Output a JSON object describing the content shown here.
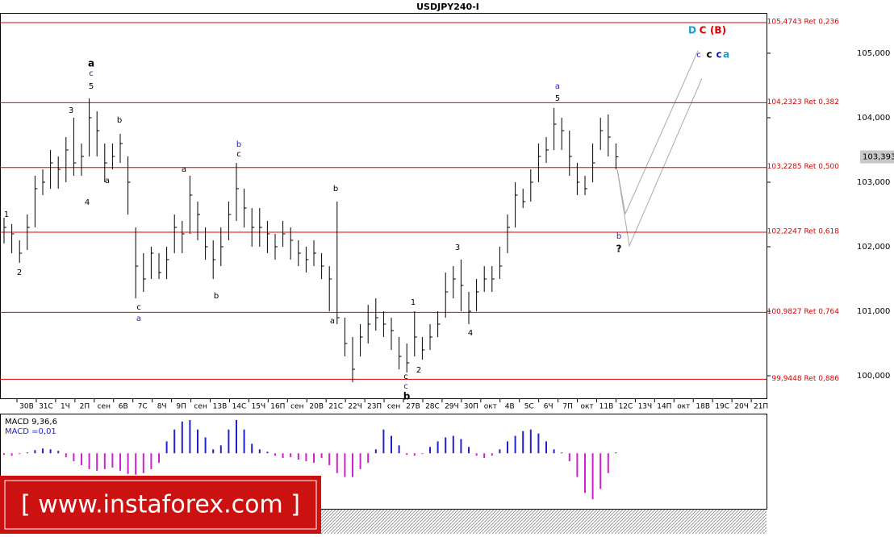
{
  "chart_data": {
    "type": "ohlc",
    "title": "USDJPY240-I",
    "color": "#000000",
    "ylim": [
      99.65,
      105.625
    ],
    "yticks": [
      {
        "value": 100,
        "label": "100,000"
      },
      {
        "value": 101,
        "label": "101,000"
      },
      {
        "value": 102,
        "label": "102,000"
      },
      {
        "value": 103,
        "label": "103,000"
      },
      {
        "value": 104,
        "label": "104,000"
      },
      {
        "value": 105,
        "label": "105,000"
      }
    ],
    "last_price": {
      "value": 103.393,
      "label": "103,393"
    },
    "categories": [
      "30В",
      "31С",
      "1Ч",
      "2П",
      "сен",
      "6В",
      "7С",
      "8Ч",
      "9П",
      "сен",
      "13В",
      "14С",
      "15Ч",
      "16П",
      "сен",
      "20В",
      "21С",
      "22Ч",
      "23П",
      "сен",
      "27В",
      "28С",
      "29Ч",
      "30П",
      "окт",
      "4В",
      "5С",
      "6Ч",
      "7П",
      "окт",
      "11В",
      "12С",
      "13Ч",
      "14П",
      "окт",
      "18В",
      "19С",
      "20Ч",
      "21П"
    ],
    "high": [
      102.45,
      102.35,
      102.1,
      102.5,
      103.1,
      103.2,
      103.5,
      103.4,
      103.7,
      104.0,
      103.6,
      104.3,
      104.1,
      103.6,
      103.6,
      103.75,
      103.4,
      102.3,
      101.9,
      102.0,
      101.9,
      102.0,
      102.5,
      102.4,
      103.1,
      102.7,
      102.3,
      102.1,
      102.3,
      102.7,
      103.3,
      102.9,
      102.6,
      102.6,
      102.4,
      102.2,
      102.4,
      102.3,
      102.1,
      102.0,
      102.1,
      101.9,
      101.7,
      102.7,
      100.9,
      100.6,
      100.8,
      101.1,
      101.2,
      101.0,
      100.9,
      100.6,
      100.5,
      101.0,
      100.6,
      100.8,
      101.0,
      101.6,
      101.7,
      101.8,
      101.3,
      101.5,
      101.7,
      101.7,
      102.0,
      102.5,
      103.0,
      102.9,
      103.2,
      103.6,
      103.7,
      104.15,
      104.0,
      103.8,
      103.3,
      103.1,
      103.6,
      104.0,
      104.05,
      103.6
    ],
    "low": [
      102.05,
      101.9,
      101.75,
      101.95,
      102.3,
      102.8,
      102.9,
      102.9,
      103.0,
      103.1,
      103.1,
      103.4,
      103.4,
      103.0,
      103.2,
      103.3,
      102.5,
      101.2,
      101.3,
      101.5,
      101.5,
      101.5,
      101.9,
      101.9,
      102.2,
      102.1,
      101.8,
      101.5,
      101.7,
      102.1,
      102.4,
      102.3,
      102.0,
      102.0,
      101.9,
      101.8,
      102.0,
      101.8,
      101.7,
      101.6,
      101.7,
      101.5,
      101.0,
      100.8,
      100.3,
      99.9,
      100.3,
      100.5,
      100.7,
      100.6,
      100.4,
      100.1,
      100.05,
      100.3,
      100.25,
      100.4,
      100.6,
      100.9,
      101.2,
      101.0,
      100.8,
      101.0,
      101.3,
      101.3,
      101.5,
      101.9,
      102.3,
      102.6,
      102.7,
      103.0,
      103.3,
      103.5,
      103.5,
      103.1,
      102.8,
      102.8,
      103.0,
      103.5,
      103.4,
      103.2
    ],
    "close": [
      102.3,
      102.2,
      101.9,
      102.3,
      102.9,
      103.0,
      103.3,
      103.2,
      103.5,
      103.3,
      103.4,
      104.0,
      103.8,
      103.3,
      103.4,
      103.6,
      103.0,
      101.7,
      101.5,
      101.9,
      101.6,
      101.8,
      102.3,
      102.2,
      102.8,
      102.5,
      102.0,
      101.8,
      102.0,
      102.5,
      102.9,
      102.6,
      102.3,
      102.3,
      102.2,
      102.0,
      102.2,
      102.1,
      101.9,
      101.8,
      101.9,
      101.7,
      101.5,
      100.9,
      100.5,
      100.1,
      100.6,
      100.8,
      100.9,
      100.8,
      100.7,
      100.3,
      100.2,
      100.6,
      100.4,
      100.6,
      100.8,
      101.3,
      101.5,
      101.4,
      101.0,
      101.3,
      101.5,
      101.5,
      101.7,
      102.3,
      102.8,
      102.7,
      103.0,
      103.4,
      103.5,
      103.9,
      103.8,
      103.4,
      103.0,
      102.9,
      103.3,
      103.8,
      103.7,
      103.393
    ],
    "retracements": [
      {
        "value": 105.4743,
        "label": "105,4743 Ret 0,236"
      },
      {
        "value": 104.2323,
        "label": "104,2323 Ret 0,382"
      },
      {
        "value": 103.2285,
        "label": "103,2285 Ret 0,500"
      },
      {
        "value": 102.2247,
        "label": "102,2247 Ret 0,618"
      },
      {
        "value": 100.9827,
        "label": "100,9827 Ret 0,764"
      },
      {
        "value": 99.9448,
        "label": "99,9448 Ret 0,886"
      }
    ],
    "wave_labels": [
      "1",
      "2",
      "3",
      "a",
      "c",
      "5",
      "4",
      "b",
      "a",
      "c",
      "a",
      "a",
      "b",
      "b",
      "c",
      "b",
      "a",
      "c",
      "c",
      "b",
      "1",
      "2",
      "3",
      "4",
      "a",
      "5",
      "b",
      "?",
      "D",
      "C",
      "(B)",
      "c",
      "c",
      "c",
      "a"
    ],
    "macd": {
      "title": "MACD 9,36,6",
      "value_text": "MACD =0,01",
      "ylim": [
        -0.7,
        0.49
      ],
      "values": [
        -0.02,
        -0.03,
        -0.01,
        0.01,
        0.04,
        0.06,
        0.05,
        0.03,
        -0.05,
        -0.1,
        -0.15,
        -0.2,
        -0.22,
        -0.2,
        -0.18,
        -0.22,
        -0.26,
        -0.27,
        -0.25,
        -0.2,
        -0.12,
        0.15,
        0.3,
        0.4,
        0.42,
        0.3,
        0.2,
        0.05,
        0.1,
        0.3,
        0.42,
        0.3,
        0.12,
        0.05,
        0.02,
        -0.03,
        -0.06,
        -0.05,
        -0.08,
        -0.1,
        -0.12,
        -0.06,
        -0.15,
        -0.25,
        -0.3,
        -0.3,
        -0.2,
        -0.12,
        0.05,
        0.3,
        0.22,
        0.1,
        -0.02,
        -0.03,
        -0.01,
        0.08,
        0.15,
        0.2,
        0.22,
        0.18,
        0.08,
        -0.03,
        -0.06,
        -0.03,
        0.05,
        0.15,
        0.22,
        0.28,
        0.3,
        0.25,
        0.15,
        0.05,
        0.01,
        -0.1,
        -0.3,
        -0.5,
        -0.58,
        -0.45,
        -0.25,
        0.01
      ],
      "up_color": "#2222cc",
      "down_color": "#cc22cc"
    },
    "watermark": "[  www.instaforex.com ]"
  }
}
